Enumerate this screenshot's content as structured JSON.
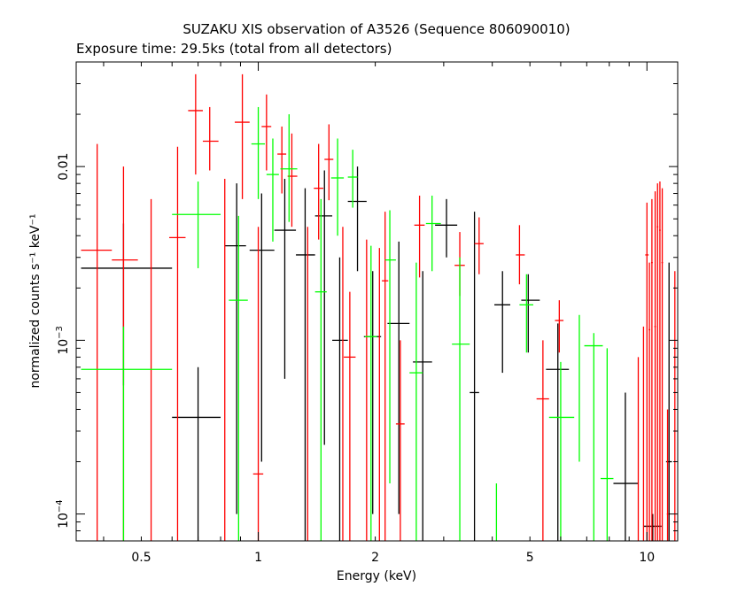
{
  "title": "SUZAKU XIS observation of A3526 (Sequence 806090010)",
  "subtitle": "Exposure time: 29.5ks (total from all detectors)",
  "chart_data": {
    "type": "scatter",
    "title": "SUZAKU XIS observation of A3526 (Sequence 806090010)",
    "subtitle": "Exposure time: 29.5ks (total from all detectors)",
    "xlabel": "Energy (keV)",
    "ylabel": "normalized counts s⁻¹ keV⁻¹",
    "xscale": "log",
    "yscale": "log",
    "xlim": [
      0.34,
      12
    ],
    "ylim": [
      7e-05,
      0.04
    ],
    "grid": false,
    "x_ticks": [
      {
        "v": 0.5,
        "label": "0.5"
      },
      {
        "v": 1,
        "label": "1"
      },
      {
        "v": 2,
        "label": "2"
      },
      {
        "v": 5,
        "label": "5"
      },
      {
        "v": 10,
        "label": "10"
      }
    ],
    "y_ticks": [
      {
        "v": 0.0001,
        "base": "10",
        "exp": "−4"
      },
      {
        "v": 0.001,
        "base": "10",
        "exp": "−3"
      },
      {
        "v": 0.01,
        "label": "0.01"
      }
    ],
    "series": [
      {
        "color": "#000000",
        "points": [
          {
            "x": 0.45,
            "xlo": 0.35,
            "xhi": 0.6,
            "y": 0.0026,
            "ylo": 0.00055,
            "yhi": 0.0047
          },
          {
            "x": 0.7,
            "xlo": 0.6,
            "xhi": 0.8,
            "y": 0.00036,
            "ylo": 5e-05,
            "yhi": 0.0007
          },
          {
            "x": 0.88,
            "xlo": 0.82,
            "xhi": 0.93,
            "y": 0.0035,
            "ylo": 0.0001,
            "yhi": 0.008
          },
          {
            "x": 1.02,
            "xlo": 0.95,
            "xhi": 1.1,
            "y": 0.0033,
            "ylo": 0.0002,
            "yhi": 0.007
          },
          {
            "x": 1.17,
            "xlo": 1.1,
            "xhi": 1.25,
            "y": 0.0043,
            "ylo": 0.0006,
            "yhi": 0.0085
          },
          {
            "x": 1.32,
            "xlo": 1.25,
            "xhi": 1.4,
            "y": 0.0031,
            "ylo": 5e-05,
            "yhi": 0.0075
          },
          {
            "x": 1.48,
            "xlo": 1.4,
            "xhi": 1.55,
            "y": 0.0052,
            "ylo": 0.00025,
            "yhi": 0.0095
          },
          {
            "x": 1.62,
            "xlo": 1.55,
            "xhi": 1.7,
            "y": 0.001,
            "ylo": 5e-05,
            "yhi": 0.003
          },
          {
            "x": 1.8,
            "xlo": 1.7,
            "xhi": 1.9,
            "y": 0.0063,
            "ylo": 0.0025,
            "yhi": 0.01
          },
          {
            "x": 1.97,
            "xlo": 1.87,
            "xhi": 2.07,
            "y": 0.00105,
            "ylo": 0.0001,
            "yhi": 0.0025
          },
          {
            "x": 2.3,
            "xlo": 2.15,
            "xhi": 2.45,
            "y": 0.00125,
            "ylo": 0.0001,
            "yhi": 0.0037
          },
          {
            "x": 2.65,
            "xlo": 2.5,
            "xhi": 2.8,
            "y": 0.00075,
            "ylo": 5e-05,
            "yhi": 0.0025
          },
          {
            "x": 3.05,
            "xlo": 2.85,
            "xhi": 3.25,
            "y": 0.0046,
            "ylo": 0.003,
            "yhi": 0.0065
          },
          {
            "x": 3.6,
            "xlo": 3.5,
            "xhi": 3.7,
            "y": 0.0005,
            "ylo": 5e-05,
            "yhi": 0.0055
          },
          {
            "x": 4.25,
            "xlo": 4.05,
            "xhi": 4.45,
            "y": 0.0016,
            "ylo": 0.00065,
            "yhi": 0.0025
          },
          {
            "x": 4.95,
            "xlo": 4.75,
            "xhi": 5.3,
            "y": 0.0017,
            "ylo": 0.00085,
            "yhi": 0.0024
          },
          {
            "x": 5.9,
            "xlo": 5.5,
            "xhi": 6.3,
            "y": 0.00068,
            "ylo": 5e-05,
            "yhi": 0.00125
          },
          {
            "x": 8.8,
            "xlo": 8.2,
            "xhi": 9.5,
            "y": 0.00015,
            "ylo": 5e-05,
            "yhi": 0.0005
          },
          {
            "x": 10.35,
            "xlo": 9.8,
            "xhi": 10.9,
            "y": 8.5e-05,
            "ylo": 5e-05,
            "yhi": 0.0001
          },
          {
            "x": 11.4,
            "xlo": 11.2,
            "xhi": 11.6,
            "y": 0.0002,
            "ylo": 5e-05,
            "yhi": 0.0028
          }
        ]
      },
      {
        "color": "#ff0000",
        "points": [
          {
            "x": 0.385,
            "xlo": 0.35,
            "xhi": 0.42,
            "y": 0.0033,
            "ylo": 5e-05,
            "yhi": 0.0135
          },
          {
            "x": 0.45,
            "xlo": 0.42,
            "xhi": 0.49,
            "y": 0.0029,
            "ylo": 5e-05,
            "yhi": 0.01
          },
          {
            "x": 0.53,
            "xlo": 0.53,
            "xhi": 0.53,
            "y": 0.0005,
            "ylo": 5e-05,
            "yhi": 0.0065
          },
          {
            "x": 0.62,
            "xlo": 0.59,
            "xhi": 0.65,
            "y": 0.0039,
            "ylo": 5e-05,
            "yhi": 0.013
          },
          {
            "x": 0.69,
            "xlo": 0.66,
            "xhi": 0.72,
            "y": 0.021,
            "ylo": 0.009,
            "yhi": 0.034
          },
          {
            "x": 0.75,
            "xlo": 0.72,
            "xhi": 0.79,
            "y": 0.014,
            "ylo": 0.0095,
            "yhi": 0.022
          },
          {
            "x": 0.82,
            "xlo": 0.82,
            "xhi": 0.82,
            "y": 0.0007,
            "ylo": 5e-05,
            "yhi": 0.0085
          },
          {
            "x": 0.91,
            "xlo": 0.87,
            "xhi": 0.95,
            "y": 0.018,
            "ylo": 0.0065,
            "yhi": 0.034
          },
          {
            "x": 1.0,
            "xlo": 0.97,
            "xhi": 1.03,
            "y": 0.00017,
            "ylo": 5e-05,
            "yhi": 0.0045
          },
          {
            "x": 1.05,
            "xlo": 1.02,
            "xhi": 1.08,
            "y": 0.017,
            "ylo": 0.0095,
            "yhi": 0.026
          },
          {
            "x": 1.15,
            "xlo": 1.12,
            "xhi": 1.18,
            "y": 0.0118,
            "ylo": 0.007,
            "yhi": 0.017
          },
          {
            "x": 1.22,
            "xlo": 1.19,
            "xhi": 1.26,
            "y": 0.0088,
            "ylo": 0.0045,
            "yhi": 0.0155
          },
          {
            "x": 1.34,
            "xlo": 1.34,
            "xhi": 1.34,
            "y": 0.0005,
            "ylo": 5e-05,
            "yhi": 0.0045
          },
          {
            "x": 1.43,
            "xlo": 1.39,
            "xhi": 1.47,
            "y": 0.0075,
            "ylo": 0.0038,
            "yhi": 0.0135
          },
          {
            "x": 1.52,
            "xlo": 1.48,
            "xhi": 1.56,
            "y": 0.011,
            "ylo": 0.0064,
            "yhi": 0.0175
          },
          {
            "x": 1.65,
            "xlo": 1.65,
            "xhi": 1.65,
            "y": 0.0005,
            "ylo": 5e-05,
            "yhi": 0.0045
          },
          {
            "x": 1.72,
            "xlo": 1.66,
            "xhi": 1.78,
            "y": 0.0008,
            "ylo": 5e-05,
            "yhi": 0.0019
          },
          {
            "x": 1.9,
            "xlo": 1.9,
            "xhi": 1.9,
            "y": 0.0005,
            "ylo": 5e-05,
            "yhi": 0.0038
          },
          {
            "x": 2.05,
            "xlo": 2.05,
            "xhi": 2.05,
            "y": 0.001,
            "ylo": 5e-05,
            "yhi": 0.0034
          },
          {
            "x": 2.12,
            "xlo": 2.08,
            "xhi": 2.16,
            "y": 0.0022,
            "ylo": 5e-05,
            "yhi": 0.0055
          },
          {
            "x": 2.32,
            "xlo": 2.26,
            "xhi": 2.38,
            "y": 0.00033,
            "ylo": 5e-05,
            "yhi": 0.001
          },
          {
            "x": 2.6,
            "xlo": 2.52,
            "xhi": 2.68,
            "y": 0.0046,
            "ylo": 0.0023,
            "yhi": 0.0068
          },
          {
            "x": 3.3,
            "xlo": 3.2,
            "xhi": 3.4,
            "y": 0.0027,
            "ylo": 0.0018,
            "yhi": 0.0042
          },
          {
            "x": 3.7,
            "xlo": 3.6,
            "xhi": 3.8,
            "y": 0.0036,
            "ylo": 0.0024,
            "yhi": 0.0051
          },
          {
            "x": 4.7,
            "xlo": 4.6,
            "xhi": 4.85,
            "y": 0.0031,
            "ylo": 0.0021,
            "yhi": 0.0046
          },
          {
            "x": 5.4,
            "xlo": 5.2,
            "xhi": 5.6,
            "y": 0.00046,
            "ylo": 5e-05,
            "yhi": 0.001
          },
          {
            "x": 5.95,
            "xlo": 5.8,
            "xhi": 6.1,
            "y": 0.0013,
            "ylo": 0.00085,
            "yhi": 0.0017
          },
          {
            "x": 9.5,
            "xlo": 9.5,
            "xhi": 9.5,
            "y": 0.0002,
            "ylo": 5e-05,
            "yhi": 0.0008
          },
          {
            "x": 9.8,
            "xlo": 9.8,
            "xhi": 9.8,
            "y": 0.0002,
            "ylo": 5e-05,
            "yhi": 0.0012
          },
          {
            "x": 10.0,
            "xlo": 9.9,
            "xhi": 10.1,
            "y": 0.0031,
            "ylo": 5e-05,
            "yhi": 0.0062
          },
          {
            "x": 10.15,
            "xlo": 10.1,
            "xhi": 10.2,
            "y": 0.00115,
            "ylo": 5e-05,
            "yhi": 0.0028
          },
          {
            "x": 10.3,
            "xlo": 10.25,
            "xhi": 10.35,
            "y": 0.0028,
            "ylo": 5e-05,
            "yhi": 0.0065
          },
          {
            "x": 10.5,
            "xlo": 10.45,
            "xhi": 10.55,
            "y": 0.0012,
            "ylo": 5e-05,
            "yhi": 0.0072
          },
          {
            "x": 10.65,
            "xlo": 10.6,
            "xhi": 10.7,
            "y": 0.0045,
            "ylo": 5e-05,
            "yhi": 0.008
          },
          {
            "x": 10.8,
            "xlo": 10.75,
            "xhi": 10.85,
            "y": 0.0043,
            "ylo": 5e-05,
            "yhi": 0.0082
          },
          {
            "x": 10.95,
            "xlo": 10.9,
            "xhi": 11.0,
            "y": 0.0028,
            "ylo": 5e-05,
            "yhi": 0.0075
          },
          {
            "x": 11.3,
            "xlo": 11.25,
            "xhi": 11.35,
            "y": 0.0001,
            "ylo": 5e-05,
            "yhi": 0.0004
          },
          {
            "x": 11.8,
            "xlo": 11.8,
            "xhi": 11.8,
            "y": 0.0005,
            "ylo": 5e-05,
            "yhi": 0.0025
          }
        ]
      },
      {
        "color": "#00ff00",
        "points": [
          {
            "x": 0.45,
            "xlo": 0.35,
            "xhi": 0.6,
            "y": 0.00068,
            "ylo": 5e-05,
            "yhi": 0.0012
          },
          {
            "x": 0.7,
            "xlo": 0.6,
            "xhi": 0.8,
            "y": 0.0053,
            "ylo": 0.0026,
            "yhi": 0.0082
          },
          {
            "x": 0.89,
            "xlo": 0.84,
            "xhi": 0.94,
            "y": 0.0017,
            "ylo": 5e-05,
            "yhi": 0.0052
          },
          {
            "x": 1.0,
            "xlo": 0.96,
            "xhi": 1.04,
            "y": 0.0135,
            "ylo": 0.0065,
            "yhi": 0.022
          },
          {
            "x": 1.09,
            "xlo": 1.05,
            "xhi": 1.13,
            "y": 0.009,
            "ylo": 0.0037,
            "yhi": 0.0145
          },
          {
            "x": 1.2,
            "xlo": 1.14,
            "xhi": 1.26,
            "y": 0.0097,
            "ylo": 0.0048,
            "yhi": 0.02
          },
          {
            "x": 1.45,
            "xlo": 1.4,
            "xhi": 1.5,
            "y": 0.0019,
            "ylo": 5e-05,
            "yhi": 0.0065
          },
          {
            "x": 1.6,
            "xlo": 1.54,
            "xhi": 1.66,
            "y": 0.0086,
            "ylo": 0.004,
            "yhi": 0.0145
          },
          {
            "x": 1.75,
            "xlo": 1.7,
            "xhi": 1.8,
            "y": 0.0087,
            "ylo": 0.0058,
            "yhi": 0.0125
          },
          {
            "x": 1.95,
            "xlo": 1.88,
            "xhi": 2.02,
            "y": 0.00105,
            "ylo": 5e-05,
            "yhi": 0.0035
          },
          {
            "x": 2.18,
            "xlo": 2.12,
            "xhi": 2.26,
            "y": 0.0029,
            "ylo": 0.00015,
            "yhi": 0.0056
          },
          {
            "x": 2.55,
            "xlo": 2.45,
            "xhi": 2.65,
            "y": 0.00065,
            "ylo": 5e-05,
            "yhi": 0.0028
          },
          {
            "x": 2.8,
            "xlo": 2.7,
            "xhi": 2.95,
            "y": 0.0047,
            "ylo": 0.0025,
            "yhi": 0.0068
          },
          {
            "x": 3.3,
            "xlo": 3.15,
            "xhi": 3.5,
            "y": 0.00095,
            "ylo": 5e-05,
            "yhi": 0.003
          },
          {
            "x": 4.1,
            "xlo": 4.1,
            "xhi": 4.1,
            "y": 0.0001,
            "ylo": 5e-05,
            "yhi": 0.00015
          },
          {
            "x": 4.9,
            "xlo": 4.7,
            "xhi": 5.1,
            "y": 0.0016,
            "ylo": 0.00085,
            "yhi": 0.0024
          },
          {
            "x": 6.0,
            "xlo": 5.6,
            "xhi": 6.5,
            "y": 0.00036,
            "ylo": 5e-05,
            "yhi": 0.00075
          },
          {
            "x": 6.7,
            "xlo": 6.7,
            "xhi": 6.7,
            "y": 0.0005,
            "ylo": 0.0002,
            "yhi": 0.0014
          },
          {
            "x": 7.3,
            "xlo": 6.9,
            "xhi": 7.7,
            "y": 0.00093,
            "ylo": 5e-05,
            "yhi": 0.0011
          },
          {
            "x": 7.9,
            "xlo": 7.6,
            "xhi": 8.2,
            "y": 0.00016,
            "ylo": 5e-05,
            "yhi": 0.0009
          }
        ]
      }
    ]
  }
}
